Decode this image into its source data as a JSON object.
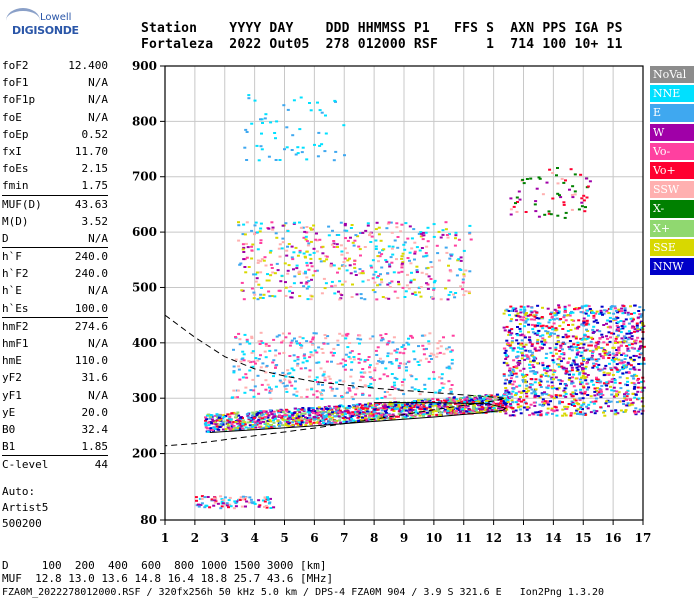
{
  "logo": {
    "text1": "Lowell",
    "text2": "DIGISONDE"
  },
  "header": {
    "line1": "Station    YYYY DAY    DDD HHMMSS P1   FFS S  AXN PPS IGA PS",
    "line2": "Fortaleza  2022 Out05  278 012000 RSF      1  714 100 10+ 11"
  },
  "params": [
    {
      "k": "foF2",
      "v": "12.400",
      "sep": false
    },
    {
      "k": "foF1",
      "v": "N/A",
      "sep": false
    },
    {
      "k": "foF1p",
      "v": "N/A",
      "sep": false
    },
    {
      "k": "foE",
      "v": "N/A",
      "sep": false
    },
    {
      "k": "foEp",
      "v": "0.52",
      "sep": false
    },
    {
      "k": "fxI",
      "v": "11.70",
      "sep": false
    },
    {
      "k": "foEs",
      "v": "2.15",
      "sep": false
    },
    {
      "k": "fmin",
      "v": "1.75",
      "sep": false
    },
    {
      "k": "MUF(D)",
      "v": "43.63",
      "sep": true
    },
    {
      "k": "M(D)",
      "v": "3.52",
      "sep": false
    },
    {
      "k": "D",
      "v": "N/A",
      "sep": false
    },
    {
      "k": "h`F",
      "v": "240.0",
      "sep": true
    },
    {
      "k": "h`F2",
      "v": "240.0",
      "sep": false
    },
    {
      "k": "h`E",
      "v": "N/A",
      "sep": false
    },
    {
      "k": "h`Es",
      "v": "100.0",
      "sep": false
    },
    {
      "k": "hmF2",
      "v": "274.6",
      "sep": true
    },
    {
      "k": "hmF1",
      "v": "N/A",
      "sep": false
    },
    {
      "k": "hmE",
      "v": "110.0",
      "sep": false
    },
    {
      "k": "yF2",
      "v": "31.6",
      "sep": false
    },
    {
      "k": "yF1",
      "v": "N/A",
      "sep": false
    },
    {
      "k": "yE",
      "v": "20.0",
      "sep": false
    },
    {
      "k": "B0",
      "v": "32.4",
      "sep": false
    },
    {
      "k": "B1",
      "v": "1.85",
      "sep": false
    },
    {
      "k": "C-level",
      "v": "44",
      "sep": true
    }
  ],
  "extra": {
    "line1": "Auto:",
    "line2": "Artist5",
    "line3": "500200"
  },
  "legend": [
    {
      "label": "NoVal",
      "color": "#8c8c8c"
    },
    {
      "label": "NNE",
      "color": "#00e0ff"
    },
    {
      "label": "E",
      "color": "#3fa8f0"
    },
    {
      "label": "W",
      "color": "#a000a8"
    },
    {
      "label": "Vo-",
      "color": "#ff40a0"
    },
    {
      "label": "Vo+",
      "color": "#ff0030"
    },
    {
      "label": "SSW",
      "color": "#ffb0b0"
    },
    {
      "label": "X-",
      "color": "#008000"
    },
    {
      "label": "X+",
      "color": "#90d870"
    },
    {
      "label": "SSE",
      "color": "#d8d800"
    },
    {
      "label": "NNW",
      "color": "#0000c8"
    }
  ],
  "bottom": {
    "line1": "D     100  200  400  600  800 1000 1500 3000 [km]",
    "line2": "MUF  12.8 13.0 13.6 14.8 16.4 18.8 25.7 43.6 [MHz]",
    "line3": "FZA0M_2022278012000.RSF / 320fx256h 50 kHz 5.0 km / DPS-4 FZA0M 904 / 3.9 S 321.6 E   Ion2Png 1.3.20"
  },
  "chart_data": {
    "type": "scatter",
    "xlim": [
      1,
      17
    ],
    "ylim": [
      80,
      900
    ],
    "x_ticks": [
      1,
      2,
      3,
      4,
      5,
      6,
      7,
      8,
      9,
      10,
      11,
      12,
      13,
      14,
      15,
      16,
      17
    ],
    "y_ticks": [
      80,
      200,
      300,
      400,
      500,
      600,
      700,
      800,
      900
    ],
    "grid": true,
    "clusters": [
      {
        "name": "Es traces",
        "fmin": 2.0,
        "fmax": 4.6,
        "hmin": 103,
        "hmax": 125,
        "n": 90,
        "colors": [
          "#3fa8f0",
          "#ff0030",
          "#a000a8",
          "#00e0ff",
          "#ffb0b0"
        ]
      },
      {
        "name": "F layer O-trace",
        "fmin": 2.3,
        "fmax": 12.4,
        "hlow": 240,
        "hhigh": 298,
        "n": 1400,
        "colors": [
          "#ff0030",
          "#3fa8f0",
          "#a000a8",
          "#00e0ff",
          "#ff40a0",
          "#0000c8",
          "#d8d800",
          "#90d870"
        ]
      },
      {
        "name": "F layer spread",
        "fmin": 3.2,
        "fmax": 10.6,
        "hmin": 300,
        "hmax": 420,
        "n": 450,
        "colors": [
          "#00e0ff",
          "#3fa8f0",
          "#ffb0b0",
          "#ff40a0"
        ]
      },
      {
        "name": "second hop",
        "fmin": 3.4,
        "fmax": 11.2,
        "hmin": 480,
        "hmax": 620,
        "n": 520,
        "colors": [
          "#00e0ff",
          "#3fa8f0",
          "#ffb0b0",
          "#d8d800",
          "#ff40a0",
          "#a000a8"
        ]
      },
      {
        "name": "spread F high",
        "fmin": 12.3,
        "fmax": 17.0,
        "hmin": 270,
        "hmax": 470,
        "n": 1300,
        "colors": [
          "#a000a8",
          "#3fa8f0",
          "#0000c8",
          "#ff0030",
          "#00e0ff",
          "#ff40a0",
          "#d8d800"
        ]
      },
      {
        "name": "third hop",
        "fmin": 3.6,
        "fmax": 7.0,
        "hmin": 730,
        "hmax": 850,
        "n": 60,
        "colors": [
          "#00e0ff",
          "#3fa8f0"
        ]
      },
      {
        "name": "high echoes",
        "fmin": 12.5,
        "fmax": 15.2,
        "hmin": 620,
        "hmax": 720,
        "n": 70,
        "colors": [
          "#ff0030",
          "#a000a8",
          "#ffb0b0",
          "#008000"
        ]
      }
    ],
    "profile_solid": [
      [
        2.5,
        238
      ],
      [
        4,
        243
      ],
      [
        6,
        250
      ],
      [
        8,
        258
      ],
      [
        10,
        266
      ],
      [
        11.5,
        273
      ],
      [
        12.3,
        278
      ],
      [
        12.4,
        282
      ],
      [
        11.8,
        290
      ],
      [
        10,
        292
      ],
      [
        8,
        292
      ]
    ],
    "profile_dashed": [
      [
        1,
        450
      ],
      [
        1.5,
        430
      ],
      [
        2,
        410
      ],
      [
        3,
        375
      ],
      [
        4,
        353
      ],
      [
        5,
        340
      ],
      [
        6,
        330
      ],
      [
        8,
        318
      ],
      [
        10,
        310
      ],
      [
        11,
        306
      ],
      [
        12.0,
        302
      ],
      [
        12.4,
        300
      ],
      [
        12,
        295
      ],
      [
        10,
        279
      ],
      [
        8,
        262
      ],
      [
        6,
        246
      ],
      [
        4,
        232
      ],
      [
        2,
        218
      ],
      [
        1,
        214
      ]
    ]
  }
}
